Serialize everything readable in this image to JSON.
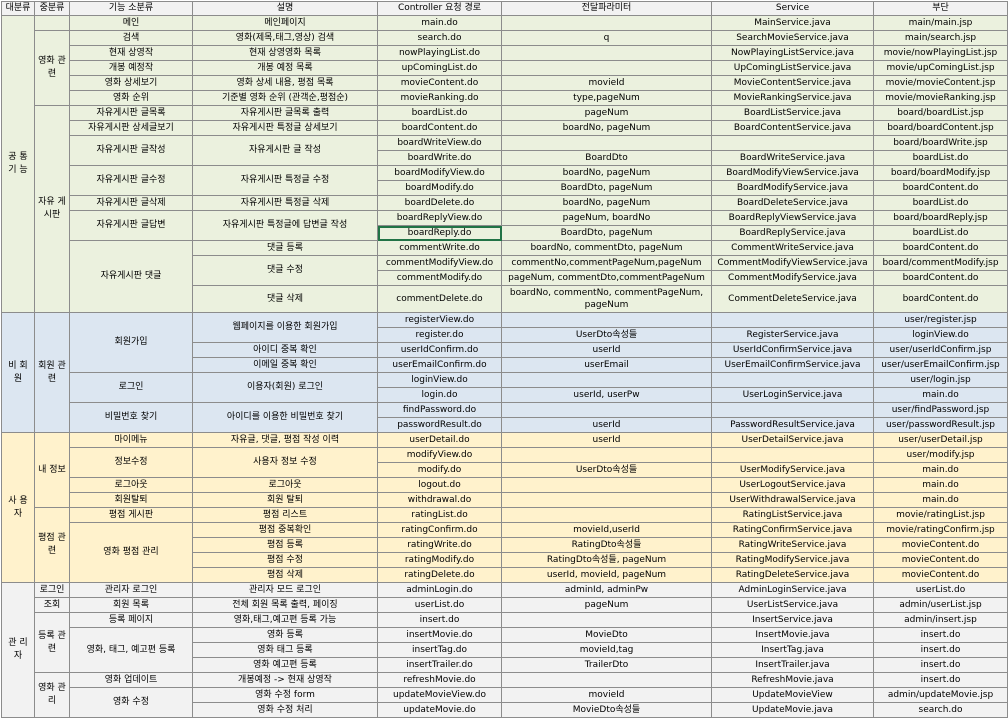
{
  "headers": [
    "대분류",
    "중분류",
    "기능 소분류",
    "설명",
    "Controller 요청 경로",
    "전달파라미터",
    "Service",
    "부단"
  ],
  "cat": {
    "common": "공 통 기 능",
    "nonmember": "비 회 원",
    "user": "사 용 자",
    "admin": "관 리 자"
  },
  "sub": {
    "movie": "영화 관련",
    "board": "자유 게시판",
    "member": "회원 관련",
    "myinfo": "내 정보",
    "rating": "평점 관련",
    "login": "로그인",
    "view": "조회",
    "register": "등록 관련",
    "moviemgmt": "영화 관리"
  },
  "rows": [
    [
      "메인",
      "메인페이지",
      "main.do",
      "",
      "MainService.java",
      "main/main.jsp"
    ],
    [
      "검색",
      "영화(제목,태그,영상) 검색",
      "search.do",
      "q",
      "SearchMovieService.java",
      "main/search.jsp"
    ],
    [
      "현재 상영작",
      "현재 상영영화 목록",
      "nowPlayingList.do",
      "",
      "NowPlayingListService.java",
      "movie/nowPlayingList.jsp"
    ],
    [
      "개봉 예정작",
      "개봉 예정 목록",
      "upComingList.do",
      "",
      "UpComingListService.java",
      "movie/upComingList.jsp"
    ],
    [
      "영화 상세보기",
      "영화 상세 내용, 평점 목록",
      "movieContent.do",
      "movieId",
      "MovieContentService.java",
      "movie/movieContent.jsp"
    ],
    [
      "영화 순위",
      "기준별 영화 순위 (관객순,평점순)",
      "movieRanking.do",
      "type,pageNum",
      "MovieRankingService.java",
      "movie/movieRanking.jsp"
    ],
    [
      "자유게시판 글목록",
      "자유게시판 글목록 출력",
      "boardList.do",
      "pageNum",
      "BoardListService.java",
      "board/boardList.jsp"
    ],
    [
      "자유게시판 상세글보기",
      "자유게시판 특정글 상세보기",
      "boardContent.do",
      "boardNo, pageNum",
      "BoardContentService.java",
      "board/boardContent.jsp"
    ],
    [
      "자유게시판 글작성",
      "자유게시판 글 작성",
      "boardWriteView.do",
      "",
      "",
      "board/boardWrite.jsp"
    ],
    [
      "",
      "",
      "boardWrite.do",
      "BoardDto",
      "BoardWriteService.java",
      "boardList.do"
    ],
    [
      "자유게시판 글수정",
      "자유게시판 특정글 수정",
      "boardModifyView.do",
      "boardNo, pageNum",
      "BoardModifyViewService.java",
      "board/boardModify.jsp"
    ],
    [
      "",
      "",
      "boardModify.do",
      "BoardDto, pageNum",
      "BoardModifyService.java",
      "boardContent.do"
    ],
    [
      "자유게시판 글삭제",
      "자유게시판 특정글 삭제",
      "boardDelete.do",
      "boardNo, pageNum",
      "BoardDeleteService.java",
      "boardList.do"
    ],
    [
      "자유게시판 글답변",
      "자유게시판 특정글에 답변글 작성",
      "boardReplyView.do",
      "pageNum, boardNo",
      "BoardReplyViewService.java",
      "board/boardReply.jsp"
    ],
    [
      "",
      "",
      "boardReply.do",
      "BoardDto, pageNum",
      "BoardReplyService.java",
      "boardList.do"
    ],
    [
      "자유게시판 댓글",
      "댓글 등록",
      "commentWrite.do",
      "boardNo, commentDto, pageNum",
      "CommentWriteService.java",
      "boardContent.do"
    ],
    [
      "",
      "댓글 수정",
      "commentModifyView.do",
      "commentNo,commentPageNum,pageNum",
      "CommentModifyViewService.java",
      "board/commentModify.jsp"
    ],
    [
      "",
      "",
      "commentModify.do",
      "pageNum, commentDto,commentPageNum",
      "CommentModifyService.java",
      "boardContent.do"
    ],
    [
      "",
      "댓글 삭제",
      "commentDelete.do",
      "boardNo, commentNo, commentPageNum, pageNum",
      "CommentDeleteService.java",
      "boardContent.do"
    ],
    [
      "회원가입",
      "웹페이지를 이용한 회원가입",
      "registerView.do",
      "",
      "",
      "user/register.jsp"
    ],
    [
      "",
      "",
      "register.do",
      "UserDto속성들",
      "RegisterService.java",
      "loginView.do"
    ],
    [
      "",
      "아이디 중복 확인",
      "userIdConfirm.do",
      "userId",
      "UserIdConfirmService.java",
      "user/userIdConfirm.jsp"
    ],
    [
      "",
      "이메일 중복 확인",
      "userEmailConfirm.do",
      "userEmail",
      "UserEmailConfirmService.java",
      "user/userEmailConfirm.jsp"
    ],
    [
      "로그인",
      "이용자(회원) 로그인",
      "loginView.do",
      "",
      "",
      "user/login.jsp"
    ],
    [
      "",
      "",
      "login.do",
      "userId, userPw",
      "UserLoginService.java",
      "main.do"
    ],
    [
      "비밀번호 찾기",
      "아이디를 이용한 비밀번호 찾기",
      "findPassword.do",
      "",
      "",
      "user/findPassword.jsp"
    ],
    [
      "",
      "",
      "passwordResult.do",
      "userId",
      "PasswordResultService.java",
      "user/passwordResult.jsp"
    ],
    [
      "마이메뉴",
      "자유글, 댓글, 평점 작성 이력",
      "userDetail.do",
      "userId",
      "UserDetailService.java",
      "user/userDetail.jsp"
    ],
    [
      "정보수정",
      "사용자 정보 수정",
      "modifyView.do",
      "",
      "",
      "user/modify.jsp"
    ],
    [
      "",
      "",
      "modify.do",
      "UserDto속성들",
      "UserModifyService.java",
      "main.do"
    ],
    [
      "로그아웃",
      "로그아웃",
      "logout.do",
      "",
      "UserLogoutService.java",
      "main.do"
    ],
    [
      "회원탈퇴",
      "회원 탈퇴",
      "withdrawal.do",
      "",
      "UserWithdrawalService.java",
      "main.do"
    ],
    [
      "평점 게시판",
      "평점 리스트",
      "ratingList.do",
      "",
      "RatingListService.java",
      "movie/ratingList.jsp"
    ],
    [
      "영화 평점 관리",
      "평점 중복확인",
      "ratingConfirm.do",
      "movieId,userId",
      "RatingConfirmService.java",
      "movie/ratingConfirm.jsp"
    ],
    [
      "",
      "평점 등록",
      "ratingWrite.do",
      "RatingDto속성들",
      "RatingWriteService.java",
      "movieContent.do"
    ],
    [
      "",
      "평점 수정",
      "ratingModify.do",
      "RatingDto속성들, pageNum",
      "RatingModifyService.java",
      "movieContent.do"
    ],
    [
      "",
      "평점 삭제",
      "ratingDelete.do",
      "userId, movieId, pageNum",
      "RatingDeleteService.java",
      "movieContent.do"
    ],
    [
      "관리자 로그인",
      "관리자 모드 로그인",
      "adminLogin.do",
      "adminId, adminPw",
      "AdminLoginService.java",
      "userList.do"
    ],
    [
      "회원 목록",
      "전체 회원 목록 출력, 페이징",
      "userList.do",
      "pageNum",
      "UserListService.java",
      "admin/userList.jsp"
    ],
    [
      "등록 페이지",
      "영화,태그,예고편 등록 가능",
      "insert.do",
      "",
      "InsertService.java",
      "admin/insert.jsp"
    ],
    [
      "영화, 태그, 예고편 등록",
      "영화 등록",
      "insertMovie.do",
      "MovieDto",
      "InsertMovie.java",
      "insert.do"
    ],
    [
      "",
      "영화 태그 등록",
      "insertTag.do",
      "movieId,tag",
      "InsertTag.java",
      "insert.do"
    ],
    [
      "",
      "영화 예고편 등록",
      "insertTrailer.do",
      "TrailerDto",
      "InsertTrailer.java",
      "insert.do"
    ],
    [
      "영화 업데이트",
      "개봉예정 -> 현재 상영작",
      "refreshMovie.do",
      "",
      "RefreshMovie.java",
      "insert.do"
    ],
    [
      "영화 수정",
      "영화 수정 form",
      "updateMovieView.do",
      "movieId",
      "UpdateMovieView",
      "admin/updateMovie.jsp"
    ],
    [
      "",
      "영화 수정 처리",
      "updateMovie.do",
      "MovieDto속성들",
      "UpdateMovie.java",
      "search.do"
    ]
  ]
}
